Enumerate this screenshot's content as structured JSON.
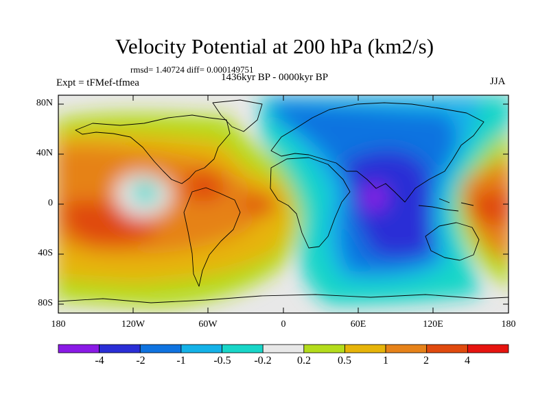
{
  "title": "Velocity Potential at 200 hPa (km2/s)",
  "stats": "rmsd= 1.40724  diff= 0.000149751",
  "period": "1436kyr BP - 0000kyr BP",
  "experiment": "Expt = tFMef-tfmea",
  "season": "JJA",
  "map": {
    "projection": "cylindrical equidistant",
    "lon_range": [
      -180,
      180
    ],
    "lat_range": [
      -90,
      90
    ],
    "lat_tick_labels": [
      "80N",
      "40N",
      "0",
      "40S",
      "80S"
    ],
    "lon_tick_labels": [
      "180",
      "120W",
      "60W",
      "0",
      "60E",
      "120E",
      "180"
    ]
  },
  "colorbar": {
    "labels": [
      "-4",
      "-2",
      "-1",
      "-0.5",
      "-0.2",
      "0.2",
      "0.5",
      "1",
      "2",
      "4"
    ],
    "colors": [
      "#8a1ae6",
      "#2a2ed6",
      "#0f73e0",
      "#14b2e8",
      "#18d6c8",
      "#e8e8e8",
      "#b4dc1c",
      "#e6b40a",
      "#e68219",
      "#e04a0e",
      "#e6140f"
    ]
  },
  "chart_data": {
    "type": "contour-map",
    "variable": "Velocity Potential at 200 hPa",
    "units": "km2/s",
    "levels": [
      -4,
      -2,
      -1,
      -0.5,
      -0.2,
      0.2,
      0.5,
      1,
      2,
      4
    ],
    "features": [
      {
        "name": "positive anomaly, eastern Pacific",
        "lon": -140,
        "lat": -10,
        "value": 2.2
      },
      {
        "name": "positive anomaly, Caribbean",
        "lon": -70,
        "lat": 15,
        "value": 2.4
      },
      {
        "name": "positive anomaly, tropical Atlantic",
        "lon": -20,
        "lat": 0,
        "value": 2.3
      },
      {
        "name": "positive anomaly, western Pacific",
        "lon": 170,
        "lat": 0,
        "value": 2.2
      },
      {
        "name": "near-zero minimum, central Pacific",
        "lon": -112,
        "lat": 2,
        "value": -0.6
      },
      {
        "name": "negative anomaly, Indian Ocean",
        "lon": 77,
        "lat": -5,
        "value": -4.3
      },
      {
        "name": "negative anomaly, Eurasia",
        "lon": 45,
        "lat": 55,
        "value": -1.2
      }
    ]
  }
}
